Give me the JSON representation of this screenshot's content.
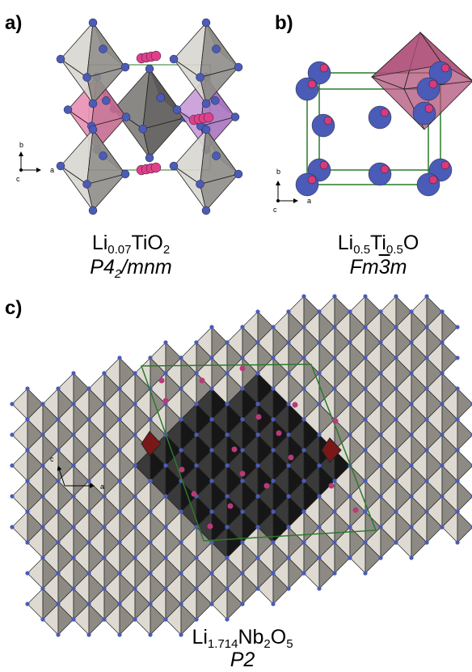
{
  "panels": [
    {
      "label": "a)",
      "axis_labels": [
        "b",
        "a",
        "c"
      ],
      "formula": [
        {
          "text": "Li"
        },
        {
          "text": "0.07",
          "sub": true
        },
        {
          "text": "TiO"
        },
        {
          "text": "2",
          "sub": true
        }
      ],
      "space_group": [
        {
          "text": "P4"
        },
        {
          "text": "2",
          "sub": true
        },
        {
          "text": "/mnm"
        }
      ]
    },
    {
      "label": "b)",
      "axis_labels": [
        "b",
        "a",
        "c"
      ],
      "formula": [
        {
          "text": "Li"
        },
        {
          "text": "0.5",
          "sub": true
        },
        {
          "text": "Ti"
        },
        {
          "text": "0.5",
          "sub": true
        },
        {
          "text": "O"
        }
      ],
      "space_group": [
        {
          "text": "Fm"
        },
        {
          "text": "3",
          "bar": true
        },
        {
          "text": "m"
        }
      ]
    },
    {
      "label": "c)",
      "axis_labels": [
        "c",
        "a"
      ],
      "formula": [
        {
          "text": "Li"
        },
        {
          "text": "1.714",
          "sub": true
        },
        {
          "text": "Nb"
        },
        {
          "text": "2",
          "sub": true
        },
        {
          "text": "O"
        },
        {
          "text": "5",
          "sub": true
        }
      ],
      "space_group": [
        {
          "text": "P2"
        }
      ]
    }
  ]
}
